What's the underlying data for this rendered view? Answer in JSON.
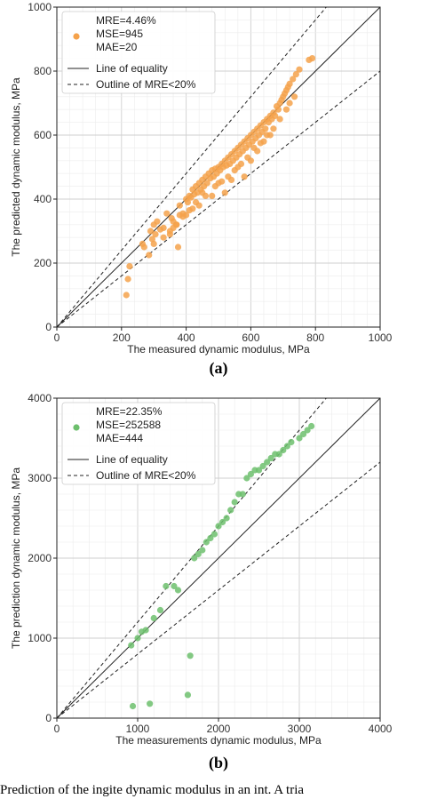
{
  "caption": "Prediction of the ingite dynamic modulus in an int. A tria",
  "chart_data": [
    {
      "type": "scatter",
      "panel_label": "(a)",
      "xlabel": "The measured dynamic modulus, MPa",
      "ylabel": "The predicted dynamic modulus, MPa",
      "xlim": [
        0,
        1000
      ],
      "ylim": [
        0,
        1000
      ],
      "xticks": [
        0,
        200,
        400,
        600,
        800,
        1000
      ],
      "yticks": [
        0,
        200,
        400,
        600,
        800,
        1000
      ],
      "grid": true,
      "legend_position": "top-left",
      "point_color": "#f5a24b",
      "metrics": [
        "MRE=4.46%",
        "MSE=945",
        "MAE=20"
      ],
      "legend": [
        {
          "label": "Line of equality",
          "style": "solid"
        },
        {
          "label": "Outline of MRE<20%",
          "style": "dashed"
        }
      ],
      "lines": [
        {
          "label": "Line of equality",
          "slope": 1.0
        },
        {
          "label": "Outline of MRE<20%",
          "slope": 1.2
        },
        {
          "label": "Outline of MRE<20%",
          "slope": 0.8
        }
      ],
      "x": [
        215,
        220,
        225,
        265,
        270,
        285,
        290,
        295,
        300,
        305,
        310,
        320,
        330,
        340,
        350,
        355,
        360,
        370,
        375,
        380,
        390,
        400,
        405,
        410,
        415,
        420,
        425,
        430,
        435,
        440,
        445,
        450,
        455,
        460,
        465,
        470,
        475,
        480,
        485,
        490,
        495,
        500,
        505,
        510,
        515,
        520,
        525,
        530,
        535,
        540,
        545,
        550,
        555,
        560,
        565,
        570,
        575,
        580,
        585,
        590,
        595,
        600,
        605,
        610,
        615,
        620,
        625,
        630,
        635,
        640,
        645,
        650,
        655,
        660,
        665,
        670,
        675,
        680,
        685,
        690,
        695,
        700,
        705,
        710,
        715,
        720,
        730,
        740,
        750,
        780,
        790,
        380,
        420,
        450,
        480,
        500,
        520,
        540,
        560,
        580,
        600,
        620,
        640,
        660,
        330,
        350,
        370,
        390,
        410,
        430,
        460,
        490,
        510,
        530,
        550,
        570,
        590,
        610,
        630,
        650,
        670,
        690,
        710,
        720,
        735,
        300,
        360,
        400,
        440
      ],
      "y": [
        100,
        150,
        190,
        260,
        250,
        225,
        300,
        275,
        320,
        290,
        330,
        305,
        310,
        355,
        290,
        340,
        330,
        320,
        250,
        350,
        355,
        400,
        390,
        410,
        405,
        430,
        415,
        440,
        420,
        450,
        430,
        460,
        440,
        470,
        450,
        480,
        465,
        490,
        470,
        495,
        480,
        500,
        490,
        510,
        500,
        520,
        505,
        530,
        510,
        540,
        520,
        550,
        530,
        560,
        540,
        570,
        550,
        580,
        560,
        590,
        570,
        600,
        580,
        610,
        590,
        620,
        600,
        630,
        610,
        640,
        620,
        650,
        640,
        660,
        650,
        670,
        660,
        690,
        680,
        700,
        710,
        720,
        730,
        740,
        750,
        760,
        775,
        790,
        805,
        835,
        840,
        380,
        370,
        420,
        410,
        450,
        420,
        460,
        500,
        470,
        520,
        550,
        580,
        600,
        280,
        300,
        320,
        345,
        365,
        390,
        410,
        440,
        455,
        470,
        490,
        510,
        530,
        560,
        575,
        600,
        620,
        650,
        680,
        700,
        720,
        260,
        310,
        350,
        380
      ]
    },
    {
      "type": "scatter",
      "panel_label": "(b)",
      "xlabel": "The measurements dynamic modulus, MPa",
      "ylabel": "The prediction dynamic modulus, MPa",
      "xlim": [
        0,
        4000
      ],
      "ylim": [
        0,
        4000
      ],
      "xticks": [
        0,
        1000,
        2000,
        3000,
        4000
      ],
      "yticks": [
        0,
        1000,
        2000,
        3000,
        4000
      ],
      "grid": true,
      "legend_position": "top-left",
      "point_color": "#6dbf6d",
      "metrics": [
        "MRE=22.35%",
        "MSE=252588",
        "MAE=444"
      ],
      "legend": [
        {
          "label": "Line of equality",
          "style": "solid"
        },
        {
          "label": "Outline of MRE<20%",
          "style": "dashed"
        }
      ],
      "lines": [
        {
          "label": "Line of equality",
          "slope": 1.0
        },
        {
          "label": "Outline of MRE<20%",
          "slope": 1.2
        },
        {
          "label": "Outline of MRE<20%",
          "slope": 0.8
        }
      ],
      "x": [
        920,
        940,
        1000,
        1050,
        1100,
        1200,
        1280,
        1350,
        1450,
        1500,
        1620,
        1650,
        1700,
        1750,
        1800,
        1850,
        1900,
        1950,
        2000,
        2050,
        2100,
        2150,
        2200,
        2250,
        2300,
        2350,
        2400,
        2450,
        2500,
        2550,
        2600,
        2650,
        2700,
        2750,
        2800,
        2850,
        2900,
        3000,
        3050,
        3100,
        3150,
        1150
      ],
      "y": [
        910,
        150,
        1000,
        1080,
        1100,
        1250,
        1350,
        1650,
        1650,
        1600,
        290,
        780,
        2000,
        2050,
        2100,
        2200,
        2250,
        2300,
        2400,
        2450,
        2500,
        2600,
        2700,
        2800,
        2800,
        3000,
        3050,
        3100,
        3100,
        3150,
        3200,
        3250,
        3300,
        3300,
        3350,
        3400,
        3450,
        3500,
        3550,
        3600,
        3650,
        180
      ]
    }
  ]
}
